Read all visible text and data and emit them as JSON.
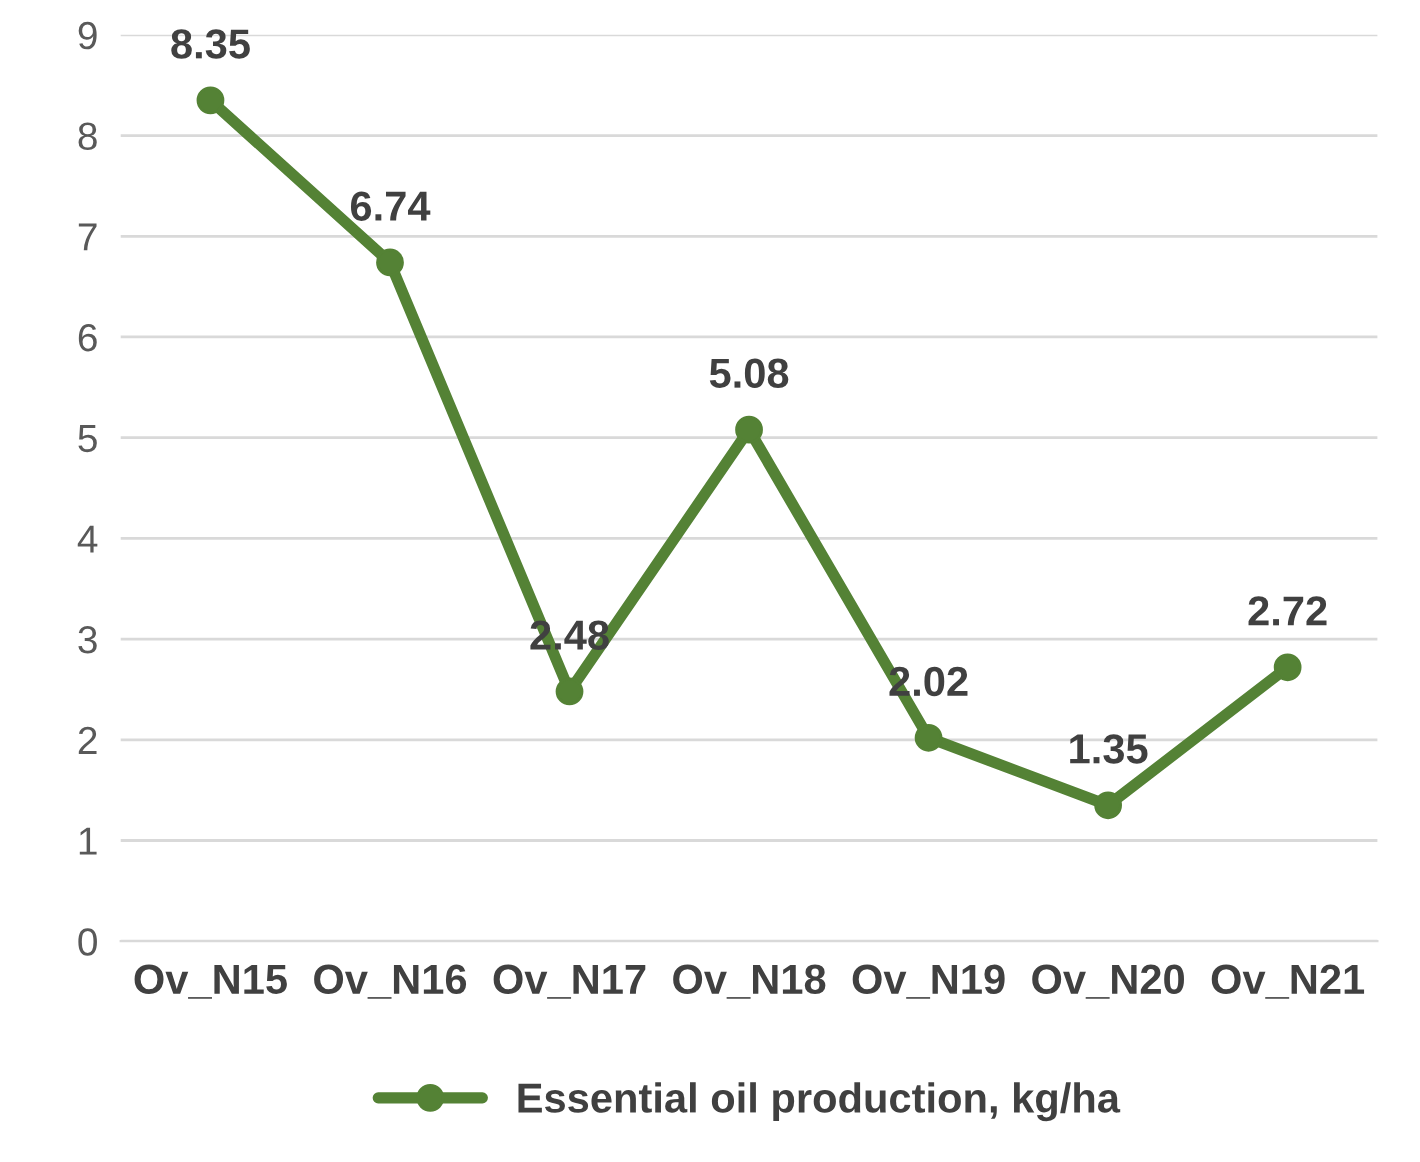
{
  "chart_data": {
    "type": "line",
    "categories": [
      "Ov_N15",
      "Ov_N16",
      "Ov_N17",
      "Ov_N18",
      "Ov_N19",
      "Ov_N20",
      "Ov_N21"
    ],
    "series": [
      {
        "name": "Essential oil production, kg/ha",
        "color": "#548235",
        "values": [
          8.35,
          6.74,
          2.48,
          5.08,
          2.02,
          1.35,
          2.72
        ]
      }
    ],
    "ylim": [
      0,
      9
    ],
    "yticks": [
      0,
      1,
      2,
      3,
      4,
      5,
      6,
      7,
      8,
      9
    ],
    "grid": "y",
    "legend": "bottom",
    "marker": "circle",
    "line_style": "solid",
    "data_labels": true
  }
}
